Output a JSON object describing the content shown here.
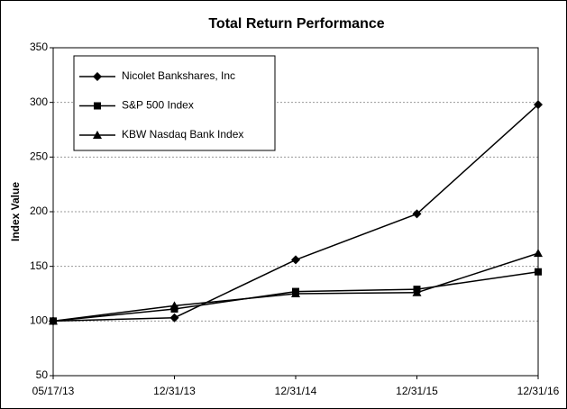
{
  "chart_data": {
    "type": "line",
    "title": "Total Return Performance",
    "y_label": "Index Value",
    "categories": [
      "05/17/13",
      "12/31/13",
      "12/31/14",
      "12/31/15",
      "12/31/16"
    ],
    "series": [
      {
        "name": "Nicolet Bankshares, Inc",
        "color": "#000000",
        "marker": "diamond",
        "values": [
          100,
          103,
          156,
          198,
          298
        ]
      },
      {
        "name": "S&P 500 Index",
        "color": "#000000",
        "marker": "square",
        "values": [
          100,
          111,
          127,
          129,
          145
        ]
      },
      {
        "name": "KBW Nasdaq Bank Index",
        "color": "#000000",
        "marker": "triangle",
        "values": [
          100,
          114,
          125,
          126,
          162
        ]
      }
    ],
    "ylim": [
      50,
      350
    ],
    "yticks": [
      50,
      100,
      150,
      200,
      250,
      300,
      350
    ],
    "grid": true,
    "legend": "upper left"
  }
}
